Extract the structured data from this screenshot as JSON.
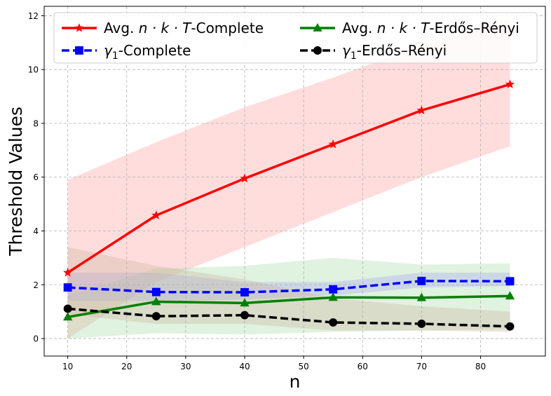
{
  "chart_data": {
    "type": "line",
    "title": "",
    "xlabel": "n",
    "ylabel": "Threshold Values",
    "xlim": [
      6,
      91
    ],
    "ylim": [
      -0.65,
      12.35
    ],
    "xticks": [
      10,
      20,
      30,
      40,
      50,
      60,
      70,
      80
    ],
    "yticks": [
      0,
      2,
      4,
      6,
      8,
      10,
      12
    ],
    "grid": true,
    "legend": "top",
    "x": [
      10,
      25,
      40,
      55,
      70,
      85
    ],
    "series": [
      {
        "name": "Avg. n·k·T-Complete",
        "name_prefix": "Avg. ",
        "name_math": "n · k · T",
        "name_suffix": "-Complete",
        "color": "#ff0000",
        "marker": "star",
        "linestyle": "solid",
        "values": [
          2.45,
          4.58,
          5.95,
          7.22,
          8.48,
          9.45
        ],
        "band_low": [
          0.0,
          2.1,
          3.4,
          4.7,
          6.0,
          7.15
        ],
        "band_high": [
          5.9,
          7.3,
          8.6,
          9.7,
          10.9,
          11.9
        ],
        "band_color": "#ffb3b3"
      },
      {
        "name": "Avg. n·k·T-Erdős–Rényi",
        "name_prefix": "Avg. ",
        "name_math": "n · k · T",
        "name_suffix": "-Erdős–Rényi",
        "color": "#008000",
        "marker": "triangle",
        "linestyle": "solid",
        "values": [
          0.8,
          1.37,
          1.32,
          1.53,
          1.52,
          1.58
        ],
        "band_low": [
          0.0,
          0.2,
          0.15,
          0.25,
          0.3,
          0.35
        ],
        "band_high": [
          1.6,
          2.6,
          2.7,
          3.0,
          2.75,
          2.8
        ],
        "band_color": "#a6d9a6"
      },
      {
        "name": "γ1-Complete",
        "name_prefix": "",
        "name_math": "γ",
        "name_sub": "1",
        "name_suffix": "-Complete",
        "color": "#0000ff",
        "marker": "square",
        "linestyle": "dashed",
        "values": [
          1.9,
          1.73,
          1.72,
          1.83,
          2.14,
          2.13
        ],
        "band_low": [
          1.4,
          1.4,
          1.45,
          1.6,
          1.9,
          1.95
        ],
        "band_high": [
          2.45,
          2.45,
          2.1,
          2.1,
          2.45,
          2.45
        ],
        "band_color": "#a6a6f2"
      },
      {
        "name": "γ1-Erdős–Rényi",
        "name_prefix": "",
        "name_math": "γ",
        "name_sub": "1",
        "name_suffix": "-Erdős–Rényi",
        "color": "#000000",
        "marker": "circle",
        "linestyle": "dashed",
        "values": [
          1.11,
          0.83,
          0.87,
          0.6,
          0.55,
          0.45
        ],
        "band_low": [
          0.9,
          0.55,
          0.55,
          0.3,
          0.3,
          0.25
        ],
        "band_high": [
          3.4,
          2.7,
          2.2,
          1.5,
          1.2,
          1.0
        ],
        "band_color": "#c8b49a"
      }
    ]
  }
}
